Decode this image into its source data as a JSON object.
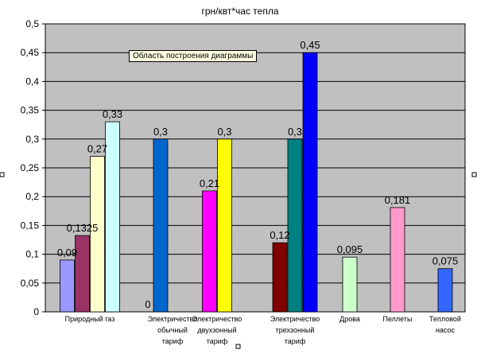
{
  "tooltip": "Область построения диаграммы",
  "chart_data": {
    "type": "bar",
    "title": "грн/квт*час тепла",
    "ylim": [
      0,
      0.5
    ],
    "yticks": [
      "0",
      "0,05",
      "0,1",
      "0,15",
      "0,2",
      "0,25",
      "0,3",
      "0,35",
      "0,4",
      "0,45",
      "0,5"
    ],
    "grid": true,
    "legend": "none",
    "colors": {
      "plot_background": "#c0c0c0",
      "gridline": "#000000",
      "frame": "#000000"
    },
    "categories": [
      {
        "label_lines": [
          "Природный газ"
        ],
        "bars": [
          {
            "value": 0.09,
            "label": "0,09",
            "color": "#9999ff"
          },
          {
            "value": 0.1325,
            "label": "0,1325",
            "color": "#993366"
          },
          {
            "value": 0.27,
            "label": "0,27",
            "color": "#ffffcc"
          },
          {
            "value": 0.33,
            "label": "0,33",
            "color": "#ccffff"
          }
        ]
      },
      {
        "label_lines": [
          "Электричество",
          "обычный",
          "тариф"
        ],
        "bars": [
          {
            "value": 0,
            "label": "0",
            "color": "#660066"
          },
          {
            "value": 0.3,
            "label": "0,3",
            "color": "#0066cc"
          }
        ]
      },
      {
        "label_lines": [
          "Электричество",
          "двухзонный",
          "тариф"
        ],
        "bars": [
          {
            "value": 0.21,
            "label": "0,21",
            "color": "#ff00ff"
          },
          {
            "value": 0.3,
            "label": "0,3",
            "color": "#ffff00"
          }
        ]
      },
      {
        "label_lines": [
          "Электричество",
          "трехзонный",
          "тариф"
        ],
        "bars": [
          {
            "value": 0.12,
            "label": "0,12",
            "color": "#800000"
          },
          {
            "value": 0.3,
            "label": "0,3",
            "color": "#008080"
          },
          {
            "value": 0.45,
            "label": "0,45",
            "color": "#0000ff"
          }
        ]
      },
      {
        "label_lines": [
          "Дрова"
        ],
        "bars": [
          {
            "value": 0.095,
            "label": "0,095",
            "color": "#ccffcc"
          }
        ]
      },
      {
        "label_lines": [
          "Пеллеты"
        ],
        "bars": [
          {
            "value": 0.181,
            "label": "0,181",
            "color": "#ff99cc"
          }
        ]
      },
      {
        "label_lines": [
          "Тепловой",
          "насос"
        ],
        "bars": [
          {
            "value": 0.075,
            "label": "0,075",
            "color": "#3366ff"
          }
        ]
      }
    ]
  }
}
